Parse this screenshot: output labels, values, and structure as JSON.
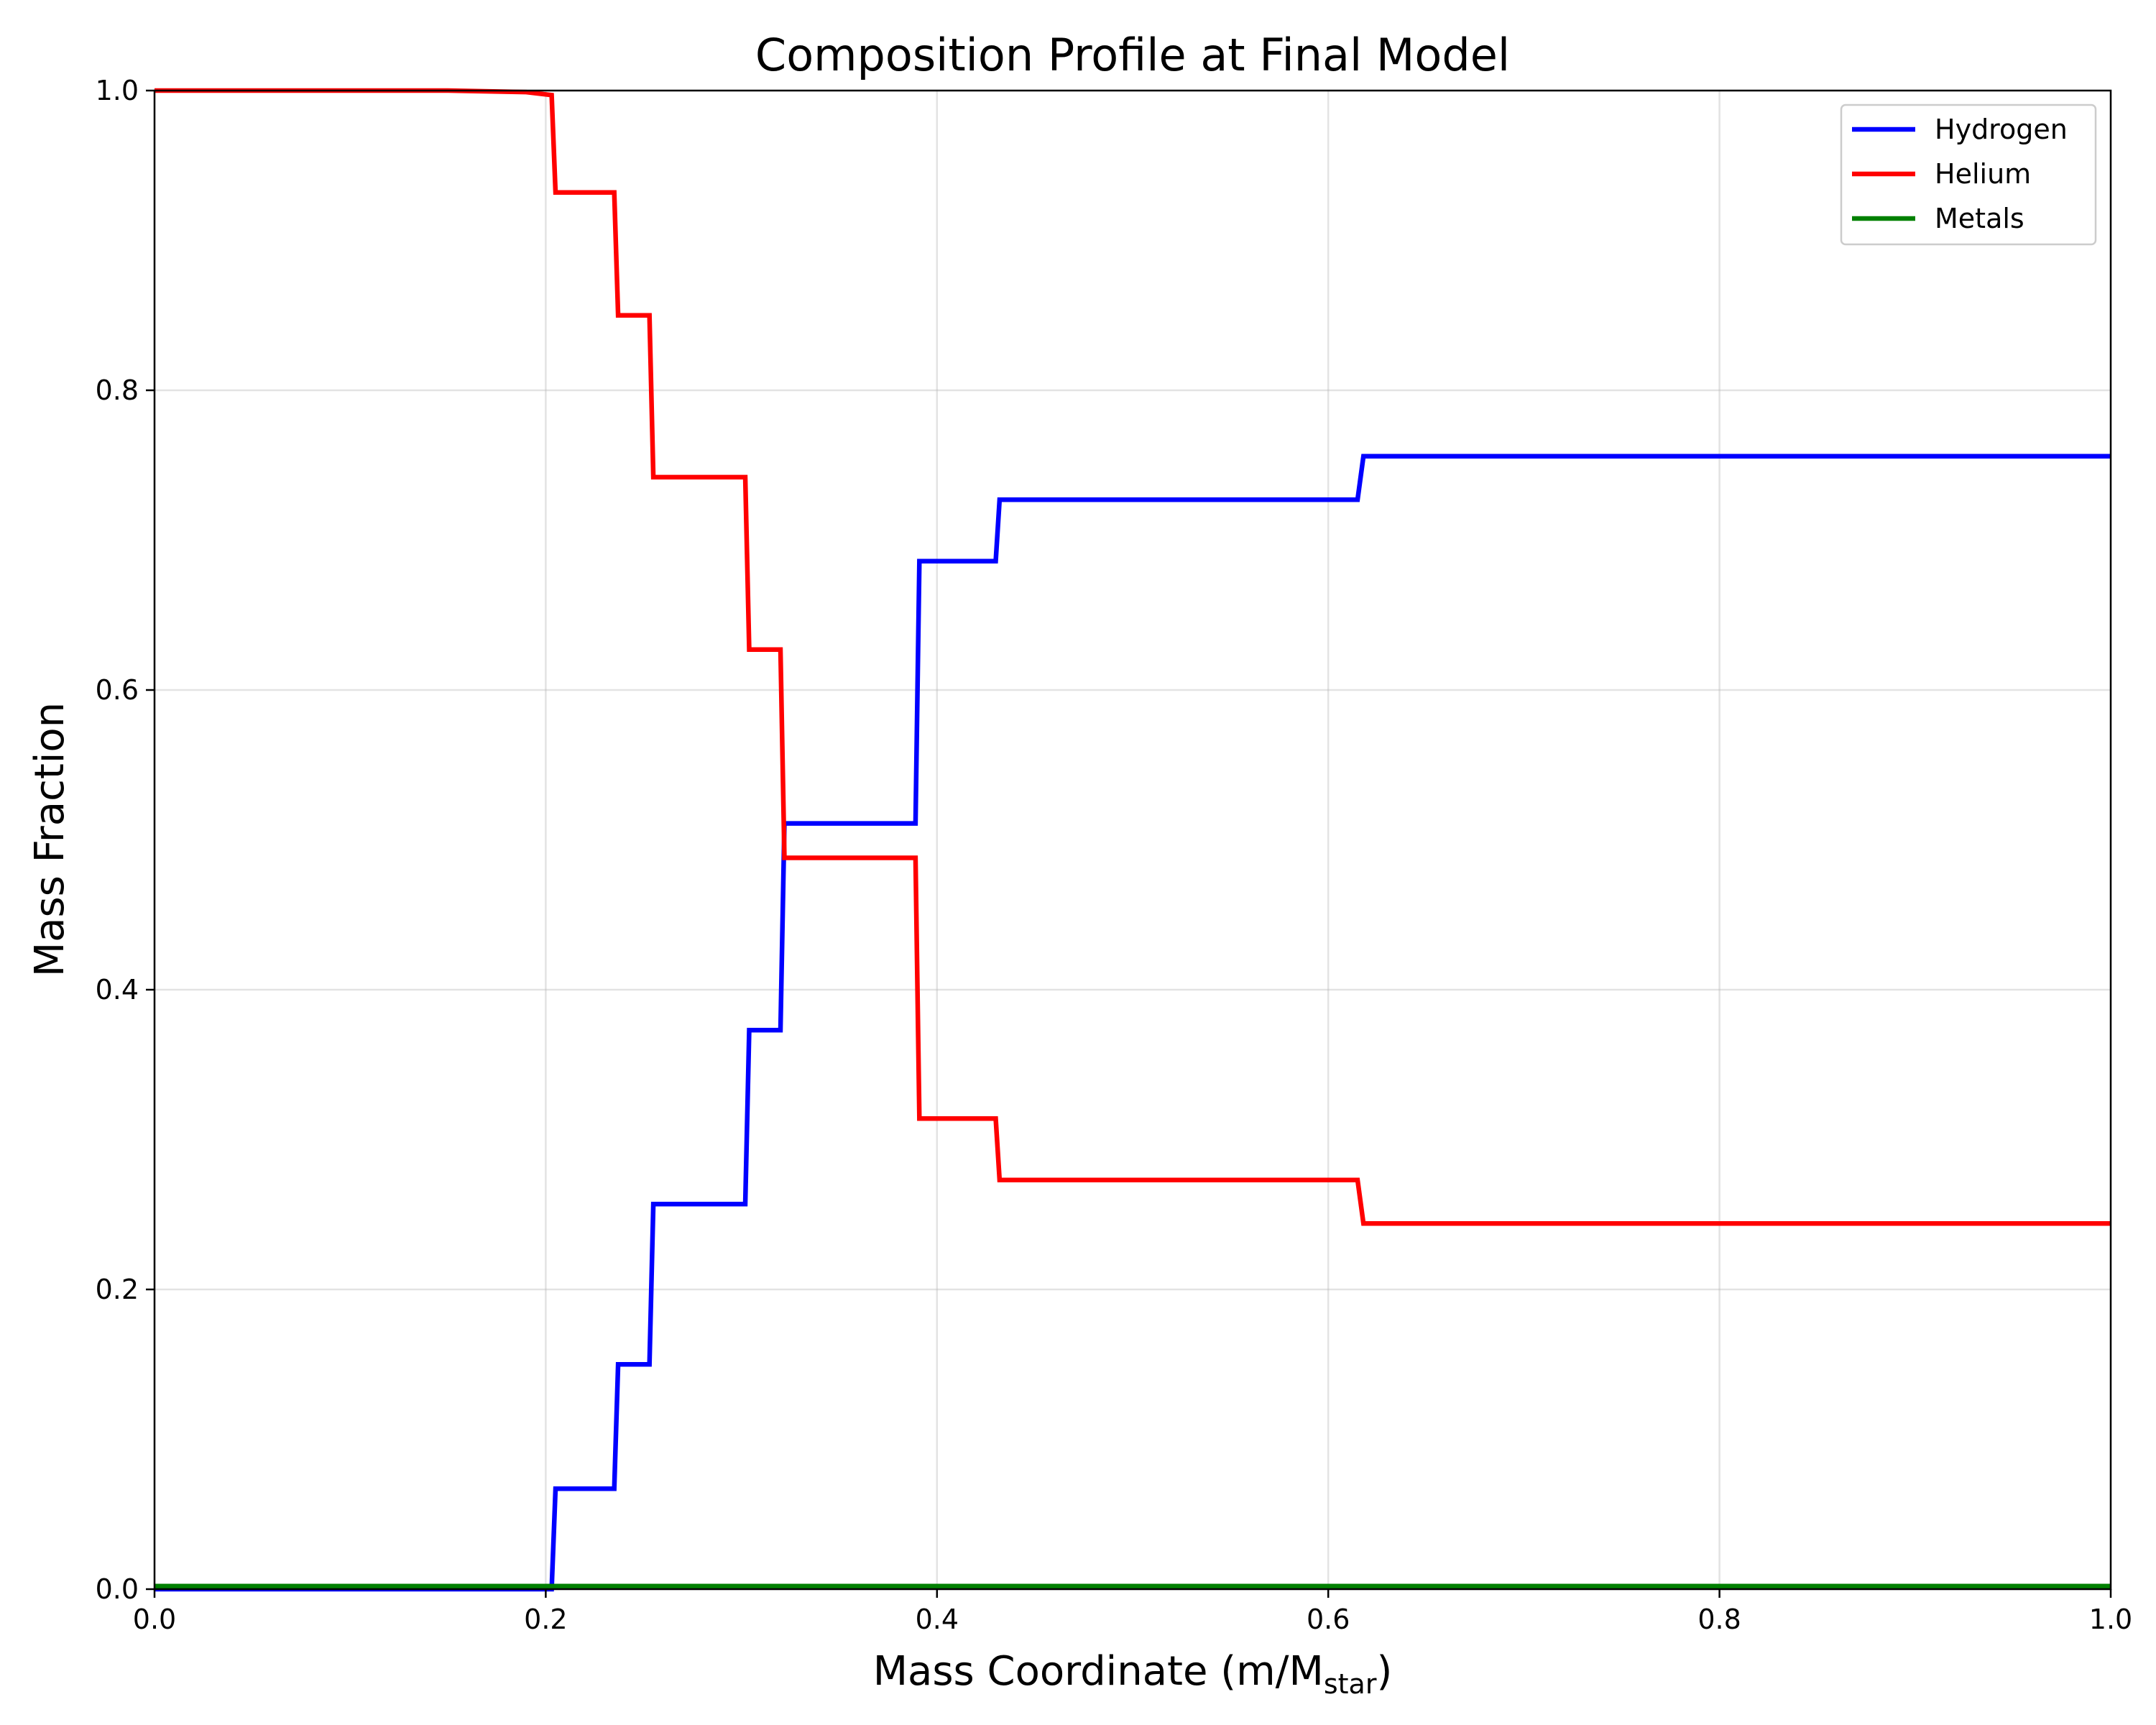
{
  "chart_data": {
    "type": "line",
    "title": "Composition Profile at Final Model",
    "xlabel": "Mass Coordinate (m/M",
    "xlabel_sub": "star",
    "xlabel_end": ")",
    "ylabel": "Mass Fraction",
    "xlim": [
      0.0,
      1.0
    ],
    "ylim": [
      0.0,
      1.0
    ],
    "xticks": [
      "0.0",
      "0.2",
      "0.4",
      "0.6",
      "0.8",
      "1.0"
    ],
    "yticks": [
      "0.0",
      "0.2",
      "0.4",
      "0.6",
      "0.8",
      "1.0"
    ],
    "grid": true,
    "legend_position": "top-right",
    "series": [
      {
        "name": "Hydrogen",
        "color": "#0000ff",
        "x": [
          0.0,
          0.203,
          0.205,
          0.235,
          0.237,
          0.253,
          0.255,
          0.302,
          0.304,
          0.32,
          0.322,
          0.389,
          0.391,
          0.43,
          0.432,
          0.615,
          0.618,
          1.0
        ],
        "y": [
          0.0,
          0.0,
          0.067,
          0.067,
          0.15,
          0.15,
          0.257,
          0.257,
          0.373,
          0.373,
          0.511,
          0.511,
          0.686,
          0.686,
          0.727,
          0.727,
          0.756,
          0.756
        ]
      },
      {
        "name": "Helium",
        "color": "#ff0000",
        "x": [
          0.0,
          0.15,
          0.19,
          0.203,
          0.205,
          0.235,
          0.237,
          0.253,
          0.255,
          0.302,
          0.304,
          0.32,
          0.322,
          0.389,
          0.391,
          0.43,
          0.432,
          0.615,
          0.618,
          1.0
        ],
        "y": [
          1.0,
          1.0,
          0.999,
          0.997,
          0.932,
          0.932,
          0.85,
          0.85,
          0.742,
          0.742,
          0.627,
          0.627,
          0.488,
          0.488,
          0.314,
          0.314,
          0.273,
          0.273,
          0.244,
          0.244
        ]
      },
      {
        "name": "Metals",
        "color": "#008000",
        "x": [
          0.0,
          1.0
        ],
        "y": [
          0.002,
          0.002
        ]
      }
    ]
  }
}
